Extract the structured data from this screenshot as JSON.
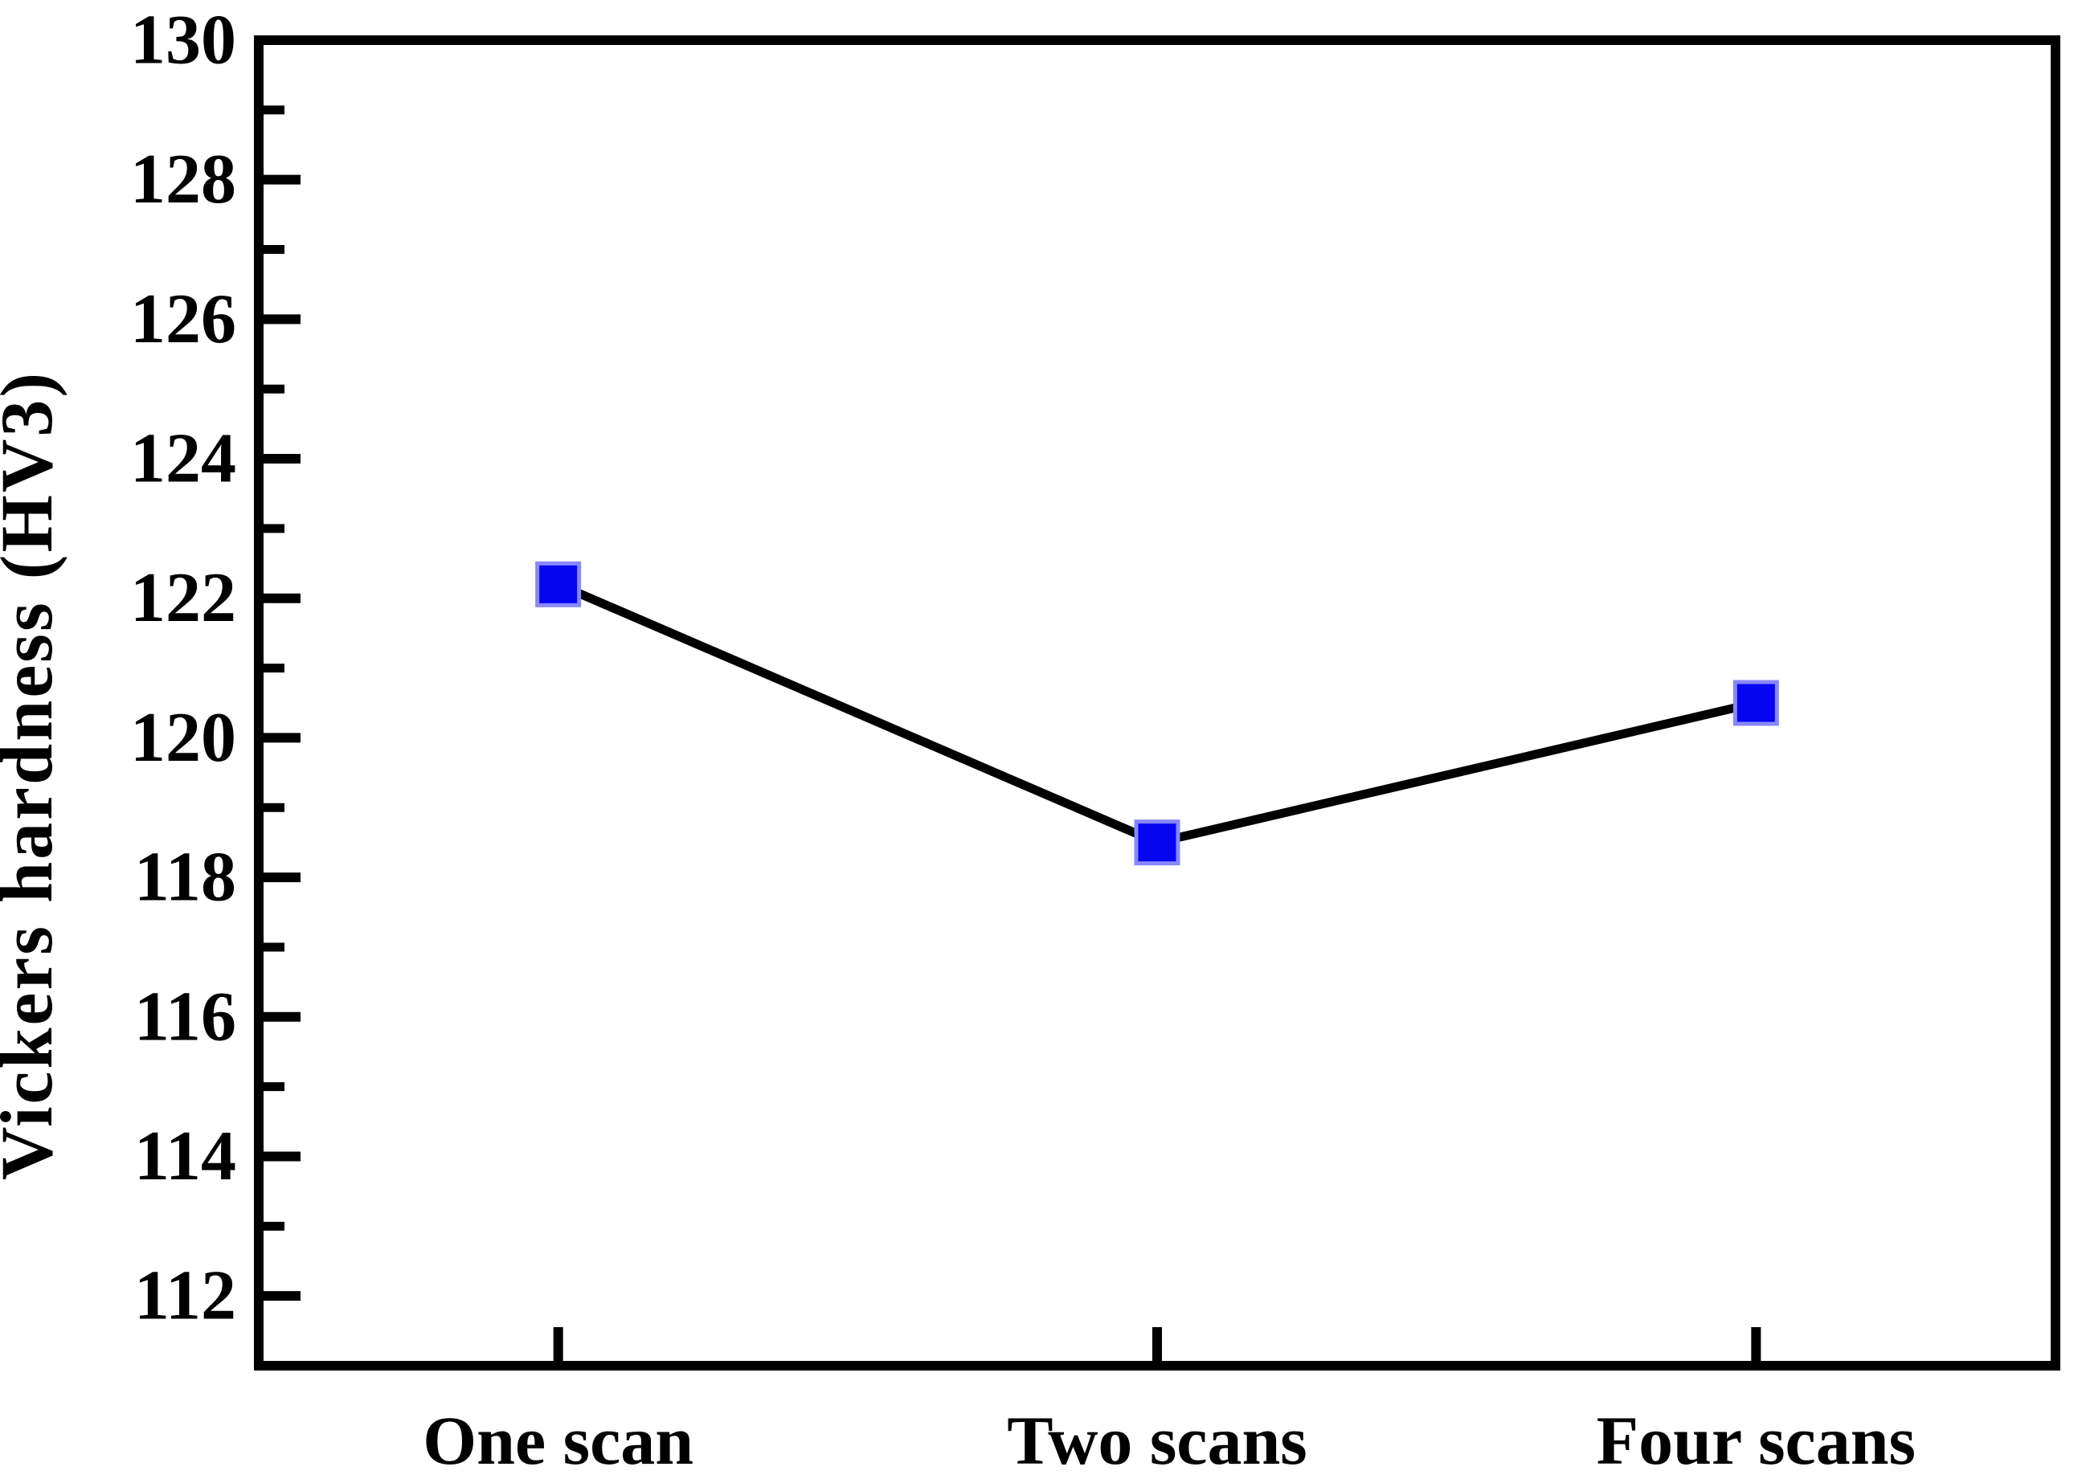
{
  "chart_data": {
    "type": "line",
    "categories": [
      "One scan",
      "Two scans",
      "Four scans"
    ],
    "series": [
      {
        "name": "Vickers hardness",
        "values": [
          122.2,
          118.5,
          120.5
        ]
      }
    ],
    "title": "",
    "xlabel": "",
    "ylabel": "Vickers hardness (HV3)",
    "ylim": [
      111,
      130
    ],
    "y_major_ticks": [
      112,
      114,
      116,
      118,
      120,
      122,
      124,
      126,
      128,
      130
    ],
    "y_minor_step": 1,
    "grid": false,
    "legend": false,
    "marker": "square",
    "marker_color": "#0505f0",
    "marker_edge_color": "#8888fa",
    "line_color": "#000000",
    "axis_color": "#000000",
    "background_color": "#ffffff"
  }
}
